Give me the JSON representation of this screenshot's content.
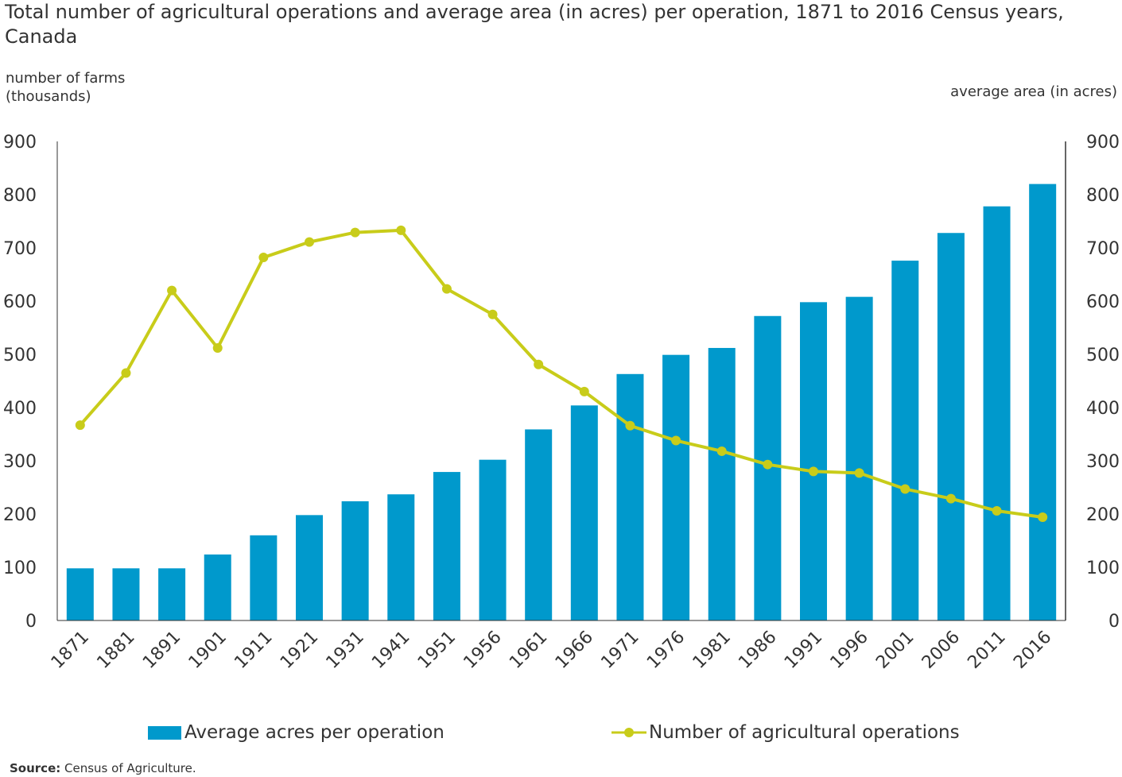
{
  "title": "Total number of agricultural operations and average area (in acres) per operation, 1871 to 2016 Census years, Canada",
  "source": {
    "label": "Source:",
    "text": "Census of Agriculture."
  },
  "colors": {
    "bars": "#0099cc",
    "line": "#c8cc1a",
    "axis": "#333333"
  },
  "chart_data": {
    "type": "bar",
    "title": "Total number of agricultural operations and average area (in acres) per operation, 1871 to 2016 Census years, Canada",
    "categories": [
      "1871",
      "1881",
      "1891",
      "1901",
      "1911",
      "1921",
      "1931",
      "1941",
      "1951",
      "1956",
      "1961",
      "1966",
      "1971",
      "1976",
      "1981",
      "1986",
      "1991",
      "1996",
      "2001",
      "2006",
      "2011",
      "2016"
    ],
    "ylabel": "number of farms (thousands)",
    "y2label": "average area (in acres)",
    "ylim": [
      0,
      900
    ],
    "y2lim": [
      0,
      900
    ],
    "yticks": [
      0,
      100,
      200,
      300,
      400,
      500,
      600,
      700,
      800,
      900
    ],
    "grid": false,
    "legend_position": "bottom",
    "series": [
      {
        "name": "Average acres per operation",
        "type": "bar",
        "axis": "right",
        "values": [
          98,
          98,
          98,
          124,
          160,
          198,
          224,
          237,
          279,
          302,
          359,
          404,
          463,
          499,
          512,
          572,
          598,
          608,
          676,
          728,
          778,
          820
        ]
      },
      {
        "name": "Number of agricultural operations",
        "type": "line",
        "axis": "left",
        "values": [
          367,
          465,
          620,
          512,
          682,
          711,
          729,
          733,
          623,
          575,
          481,
          430,
          366,
          338,
          318,
          293,
          280,
          277,
          247,
          229,
          206,
          194
        ]
      }
    ]
  }
}
